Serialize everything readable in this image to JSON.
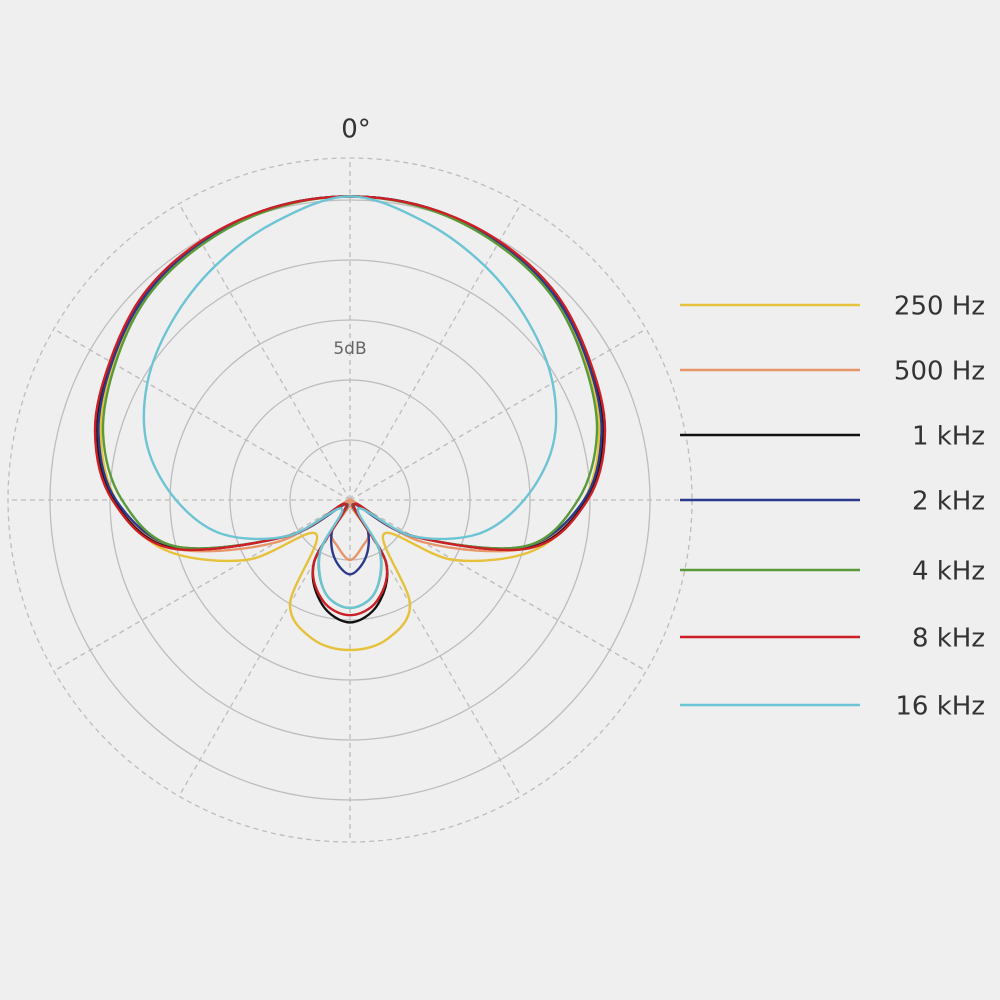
{
  "chart_data": {
    "type": "polar",
    "angle_label": "0°",
    "radial_label": "5dB",
    "theta": [
      0,
      15,
      30,
      45,
      60,
      75,
      90,
      105,
      120,
      135,
      150,
      165,
      180,
      195,
      210,
      225,
      240,
      255,
      270,
      285,
      300,
      315,
      330,
      345
    ],
    "rlim": [
      -25,
      3.5
    ],
    "rticks": [
      -20,
      -15,
      -10,
      -5,
      0
    ],
    "legend": "right",
    "series": [
      {
        "name": "250 Hz",
        "color": "#e6c13c",
        "values": [
          0.3,
          0.2,
          -0.3,
          -1,
          -2.2,
          -3.5,
          -5.5,
          -9,
          -15,
          -21,
          -15,
          -13,
          -12.5,
          -13,
          -15,
          -21,
          -15,
          -9,
          -5.5,
          -3.5,
          -2.2,
          -1,
          -0.3,
          0.2
        ]
      },
      {
        "name": "500 Hz",
        "color": "#e8956a",
        "values": [
          0.3,
          0.2,
          -0.2,
          -0.8,
          -2,
          -3.2,
          -5.3,
          -9.6,
          -18,
          -25,
          -22,
          -21,
          -20,
          -21,
          -22,
          -25,
          -18,
          -9.6,
          -5.3,
          -3.2,
          -2,
          -0.8,
          -0.2,
          0.2
        ]
      },
      {
        "name": "1 kHz",
        "color": "#111111",
        "values": [
          0.3,
          0.2,
          -0.2,
          -0.8,
          -2,
          -3.2,
          -5.3,
          -9.6,
          -19,
          -24.5,
          -19,
          -16,
          -14.8,
          -16,
          -19,
          -24.5,
          -19,
          -9.6,
          -5.3,
          -3.2,
          -2,
          -0.8,
          -0.2,
          0.2
        ]
      },
      {
        "name": "2 kHz",
        "color": "#2b3a8c",
        "values": [
          0.3,
          0.2,
          -0.2,
          -0.9,
          -2.1,
          -3.3,
          -5.5,
          -10,
          -19,
          -24.5,
          -22,
          -20,
          -18.8,
          -20,
          -22,
          -24.5,
          -19,
          -10,
          -5.5,
          -3.3,
          -2.1,
          -0.9,
          -0.2,
          0.2
        ]
      },
      {
        "name": "4 kHz",
        "color": "#5a9a3a",
        "values": [
          0.3,
          0.1,
          -0.4,
          -1.1,
          -2.4,
          -3.7,
          -6,
          -10,
          -19,
          -24.5,
          -20,
          -17,
          -16,
          -17,
          -20,
          -24.5,
          -19,
          -10,
          -6,
          -3.7,
          -2.4,
          -1.1,
          -0.4,
          0.1
        ]
      },
      {
        "name": "8 kHz",
        "color": "#cc1f26",
        "values": [
          0.3,
          0.2,
          -0.1,
          -0.7,
          -1.9,
          -3,
          -5.2,
          -9.5,
          -19,
          -24.5,
          -19,
          -16.3,
          -15.4,
          -16.3,
          -19,
          -24.5,
          -19,
          -9.5,
          -5.2,
          -3,
          -1.9,
          -0.7,
          -0.1,
          0.2
        ]
      },
      {
        "name": "16 kHz",
        "color": "#6cc4d4",
        "values": [
          0.3,
          -1,
          -2.5,
          -4,
          -5.5,
          -7.5,
          -10.5,
          -14,
          -19,
          -24,
          -20,
          -17,
          -16,
          -17,
          -20,
          -24,
          -19,
          -14,
          -10.5,
          -7.5,
          -5.5,
          -4,
          -2.5,
          -1
        ]
      }
    ]
  }
}
